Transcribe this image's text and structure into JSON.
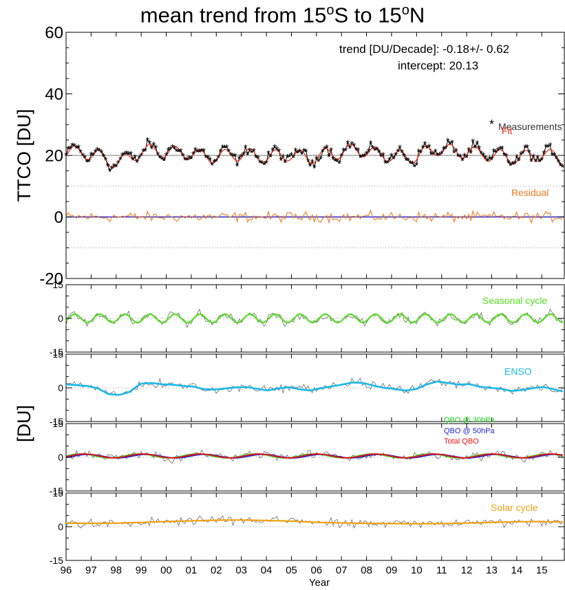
{
  "title": {
    "part1": "mean  trend from 15",
    "sup1": "o",
    "part2": "S to 15",
    "sup2": "o",
    "part3": "N"
  },
  "colors": {
    "measurements": "#000000",
    "fit": "#e8301c",
    "residual": "#f07a1c",
    "seasonal": "#55dd22",
    "enso": "#1ab8e8",
    "qbo30": "#22cc22",
    "qbo50": "#2222cc",
    "qbo_total": "#ee1111",
    "solar": "#f0a010",
    "grey_line": "#777777"
  },
  "chart_data": [
    {
      "type": "line",
      "ylabel": "TTCO [DU]",
      "ylim": [
        -20,
        60
      ],
      "yticks": [
        "60",
        "40",
        "20",
        "0",
        "-20"
      ],
      "annotations": {
        "trend": "trend [DU/Decade]: -0.18+/- 0.62",
        "intercept": "intercept:  20.13"
      },
      "series": [
        {
          "name": "Measurements",
          "mean": 20.1,
          "amplitude": 2.6,
          "values": [
            24.5,
            22.8,
            20.6,
            18.1,
            16.9,
            17.9,
            20.0,
            22.5,
            24.0,
            23.2,
            21.0,
            18.7,
            17.2,
            17.6,
            19.4,
            21.8,
            23.8,
            24.1,
            22.4,
            20.1,
            18.0,
            17.0,
            18.3,
            20.7
          ]
        },
        {
          "name": "Fit",
          "mean": 20.1,
          "amplitude": 2.1
        },
        {
          "name": "Residual",
          "mean": 0,
          "amplitude": 1.6
        }
      ]
    },
    {
      "type": "line",
      "ylim": [
        -15,
        15
      ],
      "yticks": [
        "15",
        "0",
        "-15"
      ],
      "series": [
        {
          "name": "Seasonal cycle",
          "amplitude": 1.9,
          "period_years": 1.0
        }
      ]
    },
    {
      "type": "line",
      "ylim": [
        -15,
        15
      ],
      "yticks": [
        "15",
        "0",
        "-15"
      ],
      "series": [
        {
          "name": "ENSO",
          "values": [
            1.5,
            1.2,
            0.8,
            -0.2,
            -2.8,
            -3.2,
            -1.8,
            1.8,
            2.2,
            1.6,
            1.4,
            0.9,
            0.6,
            -0.6,
            -0.8,
            -0.3,
            0.2,
            0.4,
            -0.4,
            -1.2,
            -0.3,
            0.3,
            -0.6,
            -1.2,
            -0.2,
            0.6,
            1.4,
            2.4,
            2.2,
            1.0,
            0.0,
            -0.5,
            -1.2,
            -0.6,
            1.5,
            2.8,
            2.2,
            1.4,
            1.7,
            0.5,
            0.0,
            -0.4,
            -1.4,
            -1.0,
            -0.2,
            0.4,
            -0.6,
            -1.8
          ]
        }
      ]
    },
    {
      "type": "line",
      "ylim": [
        -15,
        15
      ],
      "yticks": [
        "15",
        "0",
        "-15"
      ],
      "series": [
        {
          "name": "QBO @ 30hPa",
          "amplitude": 0.9,
          "period_years": 2.33
        },
        {
          "name": "QBO @ 50hPa",
          "amplitude": 0.8,
          "period_years": 2.33
        },
        {
          "name": "Total QBO",
          "amplitude": 1.1,
          "period_years": 2.33
        }
      ]
    },
    {
      "type": "line",
      "ylim": [
        -15,
        15
      ],
      "yticks": [
        "15",
        "0",
        "-15"
      ],
      "series": [
        {
          "name": "Solar cycle",
          "values": [
            1.6,
            1.5,
            1.6,
            1.9,
            2.3,
            2.6,
            2.9,
            3.0,
            2.8,
            2.5,
            2.0,
            1.7,
            1.5,
            1.4,
            1.3,
            1.4,
            1.6,
            1.9,
            2.2,
            2.3,
            2.1
          ]
        }
      ]
    }
  ],
  "shared": {
    "ylabel": "[DU]",
    "xlabel": "Year",
    "xlim": [
      1996,
      2015.9
    ],
    "xticks": [
      "96",
      "97",
      "98",
      "99",
      "00",
      "01",
      "02",
      "03",
      "04",
      "05",
      "06",
      "07",
      "08",
      "09",
      "10",
      "11",
      "12",
      "13",
      "14",
      "15"
    ]
  }
}
